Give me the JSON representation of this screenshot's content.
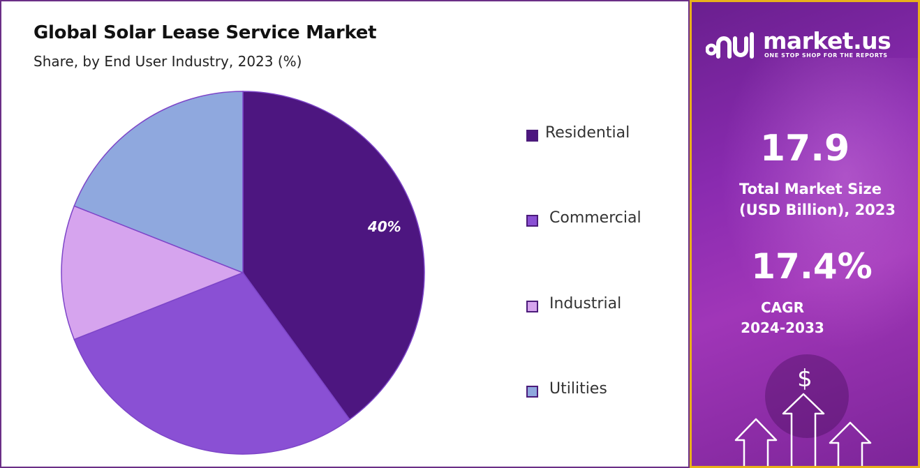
{
  "chart_data": {
    "type": "pie",
    "title": "Global Solar Lease Service Market",
    "subtitle": "Share, by End User Industry, 2023 (%)",
    "categories": [
      "Residential",
      "Commercial",
      "Industrial",
      "Utilities"
    ],
    "values": [
      40,
      29,
      12,
      19
    ],
    "colors": [
      "#4d1680",
      "#8a50d4",
      "#d6a4ee",
      "#8fa8de"
    ],
    "data_labels": [
      "40%",
      "",
      "",
      ""
    ],
    "legend_position": "right"
  },
  "sidebar": {
    "brand_name": "market.us",
    "brand_tagline": "ONE STOP SHOP FOR THE REPORTS",
    "market_size_value": "17.9",
    "market_size_label_line1": "Total Market Size",
    "market_size_label_line2": "(USD Billion), 2023",
    "cagr_value": "17.4%",
    "cagr_label_line1": "CAGR",
    "cagr_label_line2": "2024-2033",
    "dollar_symbol": "$"
  }
}
